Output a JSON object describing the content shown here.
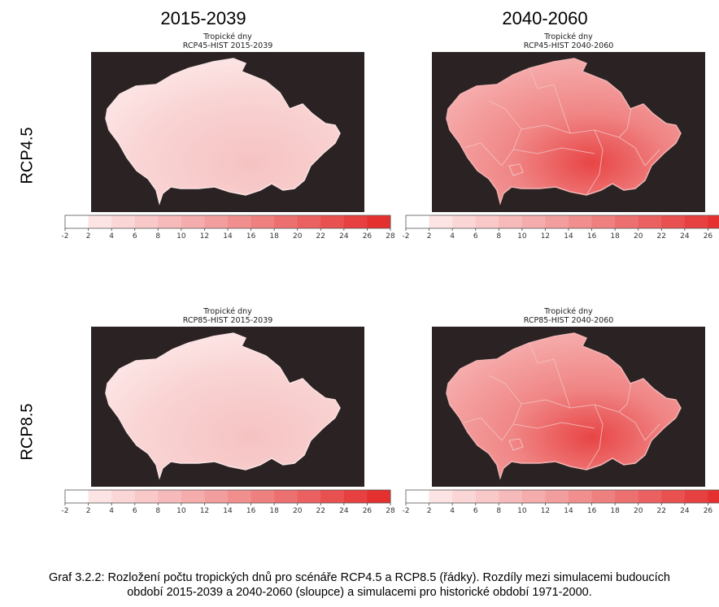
{
  "columns": [
    "2015-2039",
    "2040-2060"
  ],
  "rows": [
    "RCP4.5",
    "RCP8.5"
  ],
  "panels": [
    {
      "title_line1": "Tropické dny",
      "title_line2": "RCP45-HIST 2015-2039",
      "intensity": "low"
    },
    {
      "title_line1": "Tropické dny",
      "title_line2": "RCP45-HIST 2040-2060",
      "intensity": "high"
    },
    {
      "title_line1": "Tropické dny",
      "title_line2": "RCP85-HIST 2015-2039",
      "intensity": "low"
    },
    {
      "title_line1": "Tropické dny",
      "title_line2": "RCP85-HIST 2040-2060",
      "intensity": "high"
    }
  ],
  "colorbar": {
    "ticks": [
      "-2",
      "2",
      "4",
      "6",
      "8",
      "10",
      "12",
      "14",
      "16",
      "18",
      "20",
      "22",
      "24",
      "26",
      "28"
    ],
    "colors": [
      "#ffffff",
      "#fde4e4",
      "#fbd6d6",
      "#f9c8c8",
      "#f7baba",
      "#f5acac",
      "#f39e9e",
      "#f18f8f",
      "#ef8080",
      "#ed7070",
      "#eb6060",
      "#e95050",
      "#e74040",
      "#e53030"
    ]
  },
  "colors": {
    "background_dark": "#2b2323",
    "map_low": "#f9d3d3",
    "map_high": "#f08585",
    "map_peak": "#e84545",
    "border": "#f3c2c2"
  },
  "caption": {
    "line1": "Graf 3.2.2: Rozložení počtu tropických dnů pro scénáře RCP4.5 a RCP8.5 (řádky). Rozdíly mezi simulacemi budoucích",
    "line2": "období 2015-2039 a 2040-2060 (sloupce) a simulacemi pro historické období 1971-2000."
  }
}
